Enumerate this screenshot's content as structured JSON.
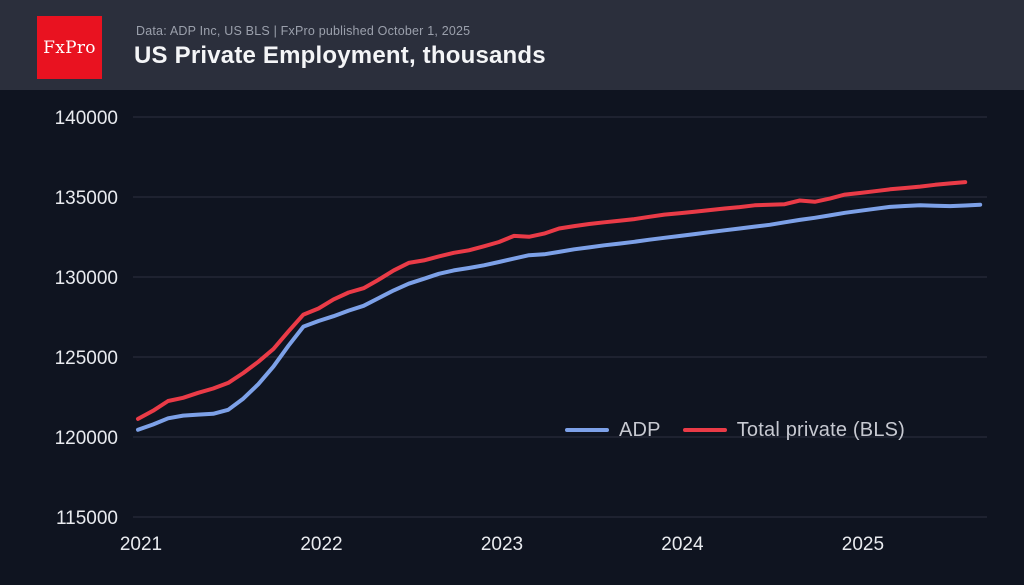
{
  "header": {
    "logo_text": "FxPro",
    "subtitle": "Data: ADP Inc, US BLS | FxPro published October 1, 2025",
    "title": "US Private Employment, thousands"
  },
  "colors": {
    "background": "#0f1420",
    "header_bar": "#2b2f3c",
    "logo_red": "#e91220",
    "gridline": "#2c3140",
    "tick_text": "#e9ebef",
    "legend_text": "#c7c9d1",
    "adp_line": "#7da1e8",
    "bls_line": "#ea3b47"
  },
  "chart_data": {
    "type": "line",
    "title": "US Private Employment, thousands",
    "subtitle": "Data: ADP Inc, US BLS | FxPro published October 1, 2025",
    "x_unit": "month",
    "x_start": "2021-01",
    "x_tick_labels": [
      "2021",
      "2022",
      "2023",
      "2024",
      "2025"
    ],
    "y_ticks": [
      115000,
      120000,
      125000,
      130000,
      135000,
      140000
    ],
    "ylim": [
      115000,
      140000
    ],
    "grid": "horizontal",
    "legend_position": "inside-right",
    "series": [
      {
        "name": "ADP",
        "color": "#7da1e8",
        "last_month": "2025-09",
        "values": [
          120450,
          120780,
          121170,
          121340,
          121400,
          121450,
          121700,
          122400,
          123300,
          124400,
          125700,
          126900,
          127250,
          127550,
          127900,
          128200,
          128680,
          129160,
          129580,
          129890,
          130200,
          130410,
          130560,
          130730,
          130940,
          131150,
          131360,
          131420,
          131570,
          131730,
          131850,
          131980,
          132090,
          132200,
          132330,
          132450,
          132560,
          132680,
          132800,
          132920,
          133030,
          133150,
          133260,
          133420,
          133570,
          133700,
          133850,
          134010,
          134140,
          134260,
          134380,
          134440,
          134480,
          134450,
          134430,
          134470,
          134520
        ]
      },
      {
        "name": "Total private (BLS)",
        "color": "#ea3b47",
        "last_month": "2025-08",
        "values": [
          121130,
          121640,
          122250,
          122450,
          122760,
          123030,
          123380,
          124000,
          124700,
          125500,
          126600,
          127650,
          128030,
          128600,
          129030,
          129300,
          129830,
          130410,
          130880,
          131040,
          131290,
          131510,
          131670,
          131920,
          132190,
          132570,
          132510,
          132715,
          133030,
          133180,
          133310,
          133420,
          133520,
          133620,
          133760,
          133900,
          133980,
          134080,
          134180,
          134280,
          134370,
          134480,
          134520,
          134550,
          134780,
          134700,
          134900,
          135150,
          135250,
          135360,
          135480,
          135560,
          135650,
          135760,
          135850,
          135930
        ]
      }
    ]
  }
}
